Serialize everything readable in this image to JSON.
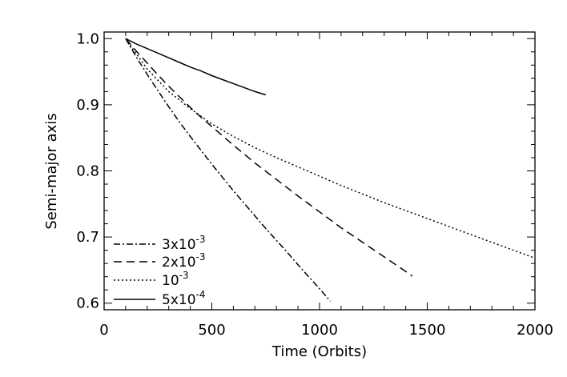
{
  "chart_data": {
    "type": "line",
    "title": "",
    "xlabel": "Time (Orbits)",
    "ylabel": "Semi-major axis",
    "xlim": [
      0,
      2000
    ],
    "ylim": [
      0.59,
      1.01
    ],
    "x_ticks": [
      0,
      500,
      1000,
      1500,
      2000
    ],
    "x_tick_labels": [
      "0",
      "500",
      "1000",
      "1500",
      "2000"
    ],
    "y_ticks": [
      0.6,
      0.7,
      0.8,
      0.9,
      1.0
    ],
    "y_tick_labels": [
      "0.6",
      "0.7",
      "0.8",
      "0.9",
      "1.0"
    ],
    "grid": false,
    "legend_position": "bottom-left",
    "line_color": "#000000",
    "series": [
      {
        "name": "3x10-3",
        "label_mantissa": "3x10",
        "label_exponent": "-3",
        "dash": "dash-dot",
        "x": [
          100,
          150,
          200,
          250,
          300,
          350,
          400,
          450,
          500,
          550,
          600,
          650,
          700,
          750,
          800,
          850,
          900,
          950,
          1000,
          1050
        ],
        "y": [
          1.0,
          0.972,
          0.946,
          0.921,
          0.897,
          0.874,
          0.852,
          0.831,
          0.81,
          0.79,
          0.77,
          0.751,
          0.732,
          0.713,
          0.695,
          0.677,
          0.658,
          0.64,
          0.622,
          0.603
        ]
      },
      {
        "name": "2x10-3",
        "label_mantissa": "2x10",
        "label_exponent": "-3",
        "dash": "dash",
        "x": [
          100,
          150,
          200,
          250,
          300,
          350,
          400,
          450,
          500,
          600,
          700,
          800,
          900,
          1000,
          1100,
          1200,
          1300,
          1400,
          1430
        ],
        "y": [
          1.0,
          0.981,
          0.963,
          0.945,
          0.928,
          0.912,
          0.896,
          0.881,
          0.867,
          0.839,
          0.812,
          0.787,
          0.762,
          0.738,
          0.714,
          0.692,
          0.67,
          0.648,
          0.641
        ]
      },
      {
        "name": "10-3",
        "label_mantissa": "10",
        "label_exponent": "-3",
        "dash": "dot",
        "x": [
          100,
          200,
          300,
          400,
          500,
          600,
          700,
          800,
          900,
          1000,
          1100,
          1200,
          1300,
          1400,
          1500,
          1600,
          1700,
          1800,
          1900,
          2000
        ],
        "y": [
          1.0,
          0.954,
          0.92,
          0.894,
          0.871,
          0.852,
          0.835,
          0.82,
          0.806,
          0.792,
          0.778,
          0.765,
          0.752,
          0.74,
          0.728,
          0.716,
          0.704,
          0.692,
          0.68,
          0.668
        ]
      },
      {
        "name": "5x10-4",
        "label_mantissa": "5x10",
        "label_exponent": "-4",
        "dash": "solid",
        "x": [
          100,
          150,
          200,
          250,
          300,
          350,
          400,
          450,
          500,
          550,
          600,
          650,
          700,
          750
        ],
        "y": [
          1.0,
          0.992,
          0.985,
          0.978,
          0.971,
          0.964,
          0.957,
          0.951,
          0.944,
          0.938,
          0.932,
          0.926,
          0.92,
          0.915
        ]
      }
    ]
  }
}
